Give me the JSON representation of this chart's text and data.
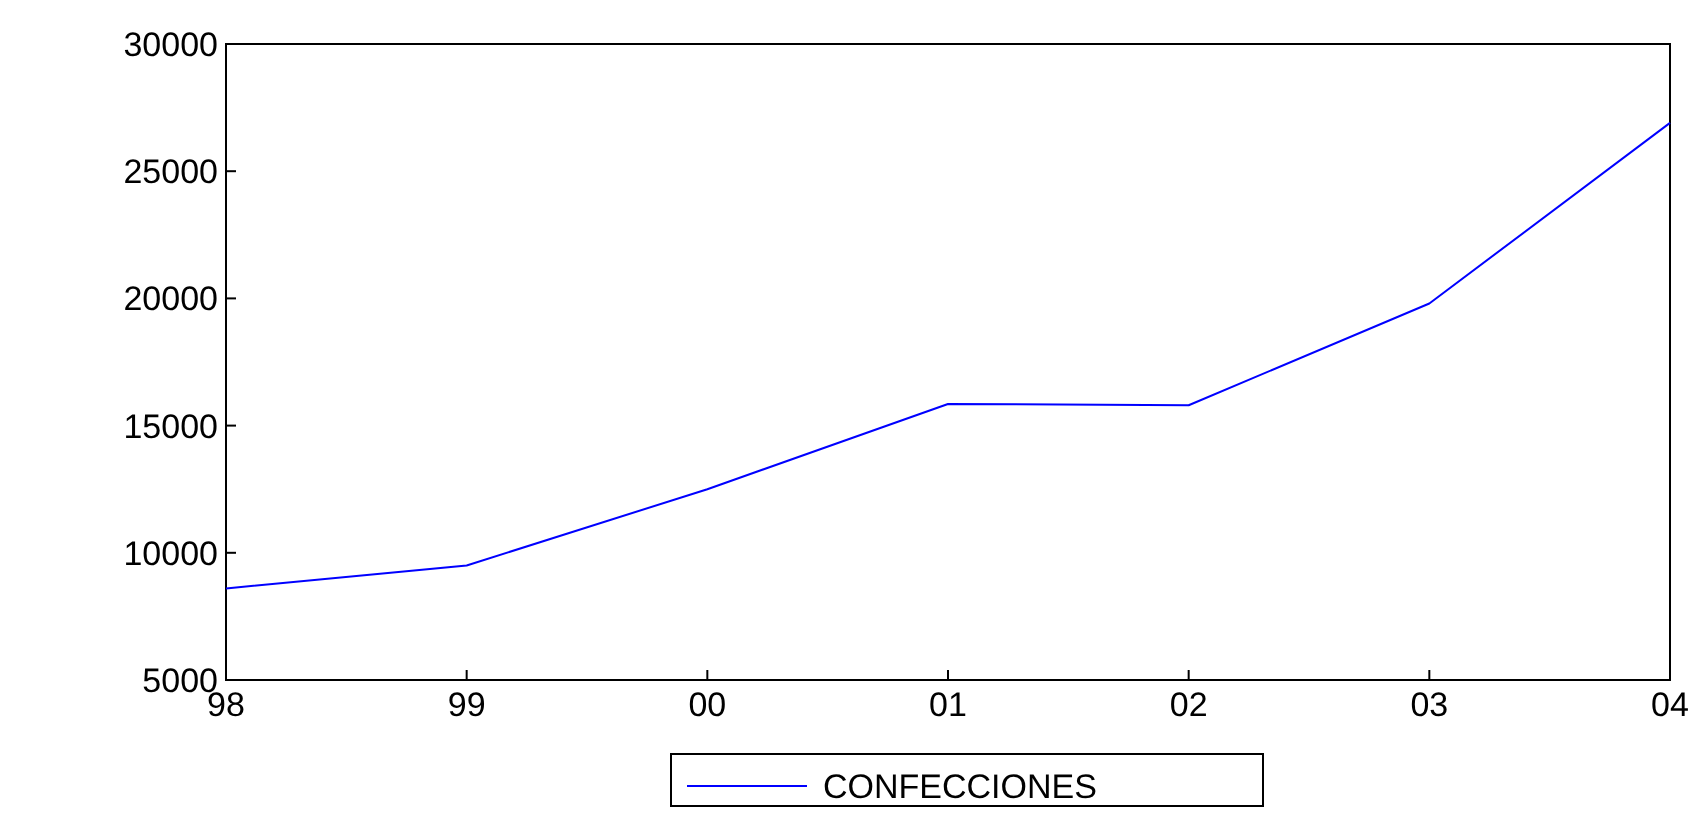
{
  "chart_data": {
    "type": "line",
    "categories": [
      "98",
      "99",
      "00",
      "01",
      "02",
      "03",
      "04"
    ],
    "series": [
      {
        "name": "CONFECCIONES",
        "color": "#0000ff",
        "values": [
          8600,
          9500,
          12500,
          15850,
          15800,
          19800,
          26900
        ]
      }
    ],
    "ylim": [
      5000,
      30000
    ],
    "yticks": [
      5000,
      10000,
      15000,
      20000,
      25000,
      30000
    ],
    "grid": false,
    "legend": "bottom",
    "marker": "none",
    "line_style": "solid"
  }
}
